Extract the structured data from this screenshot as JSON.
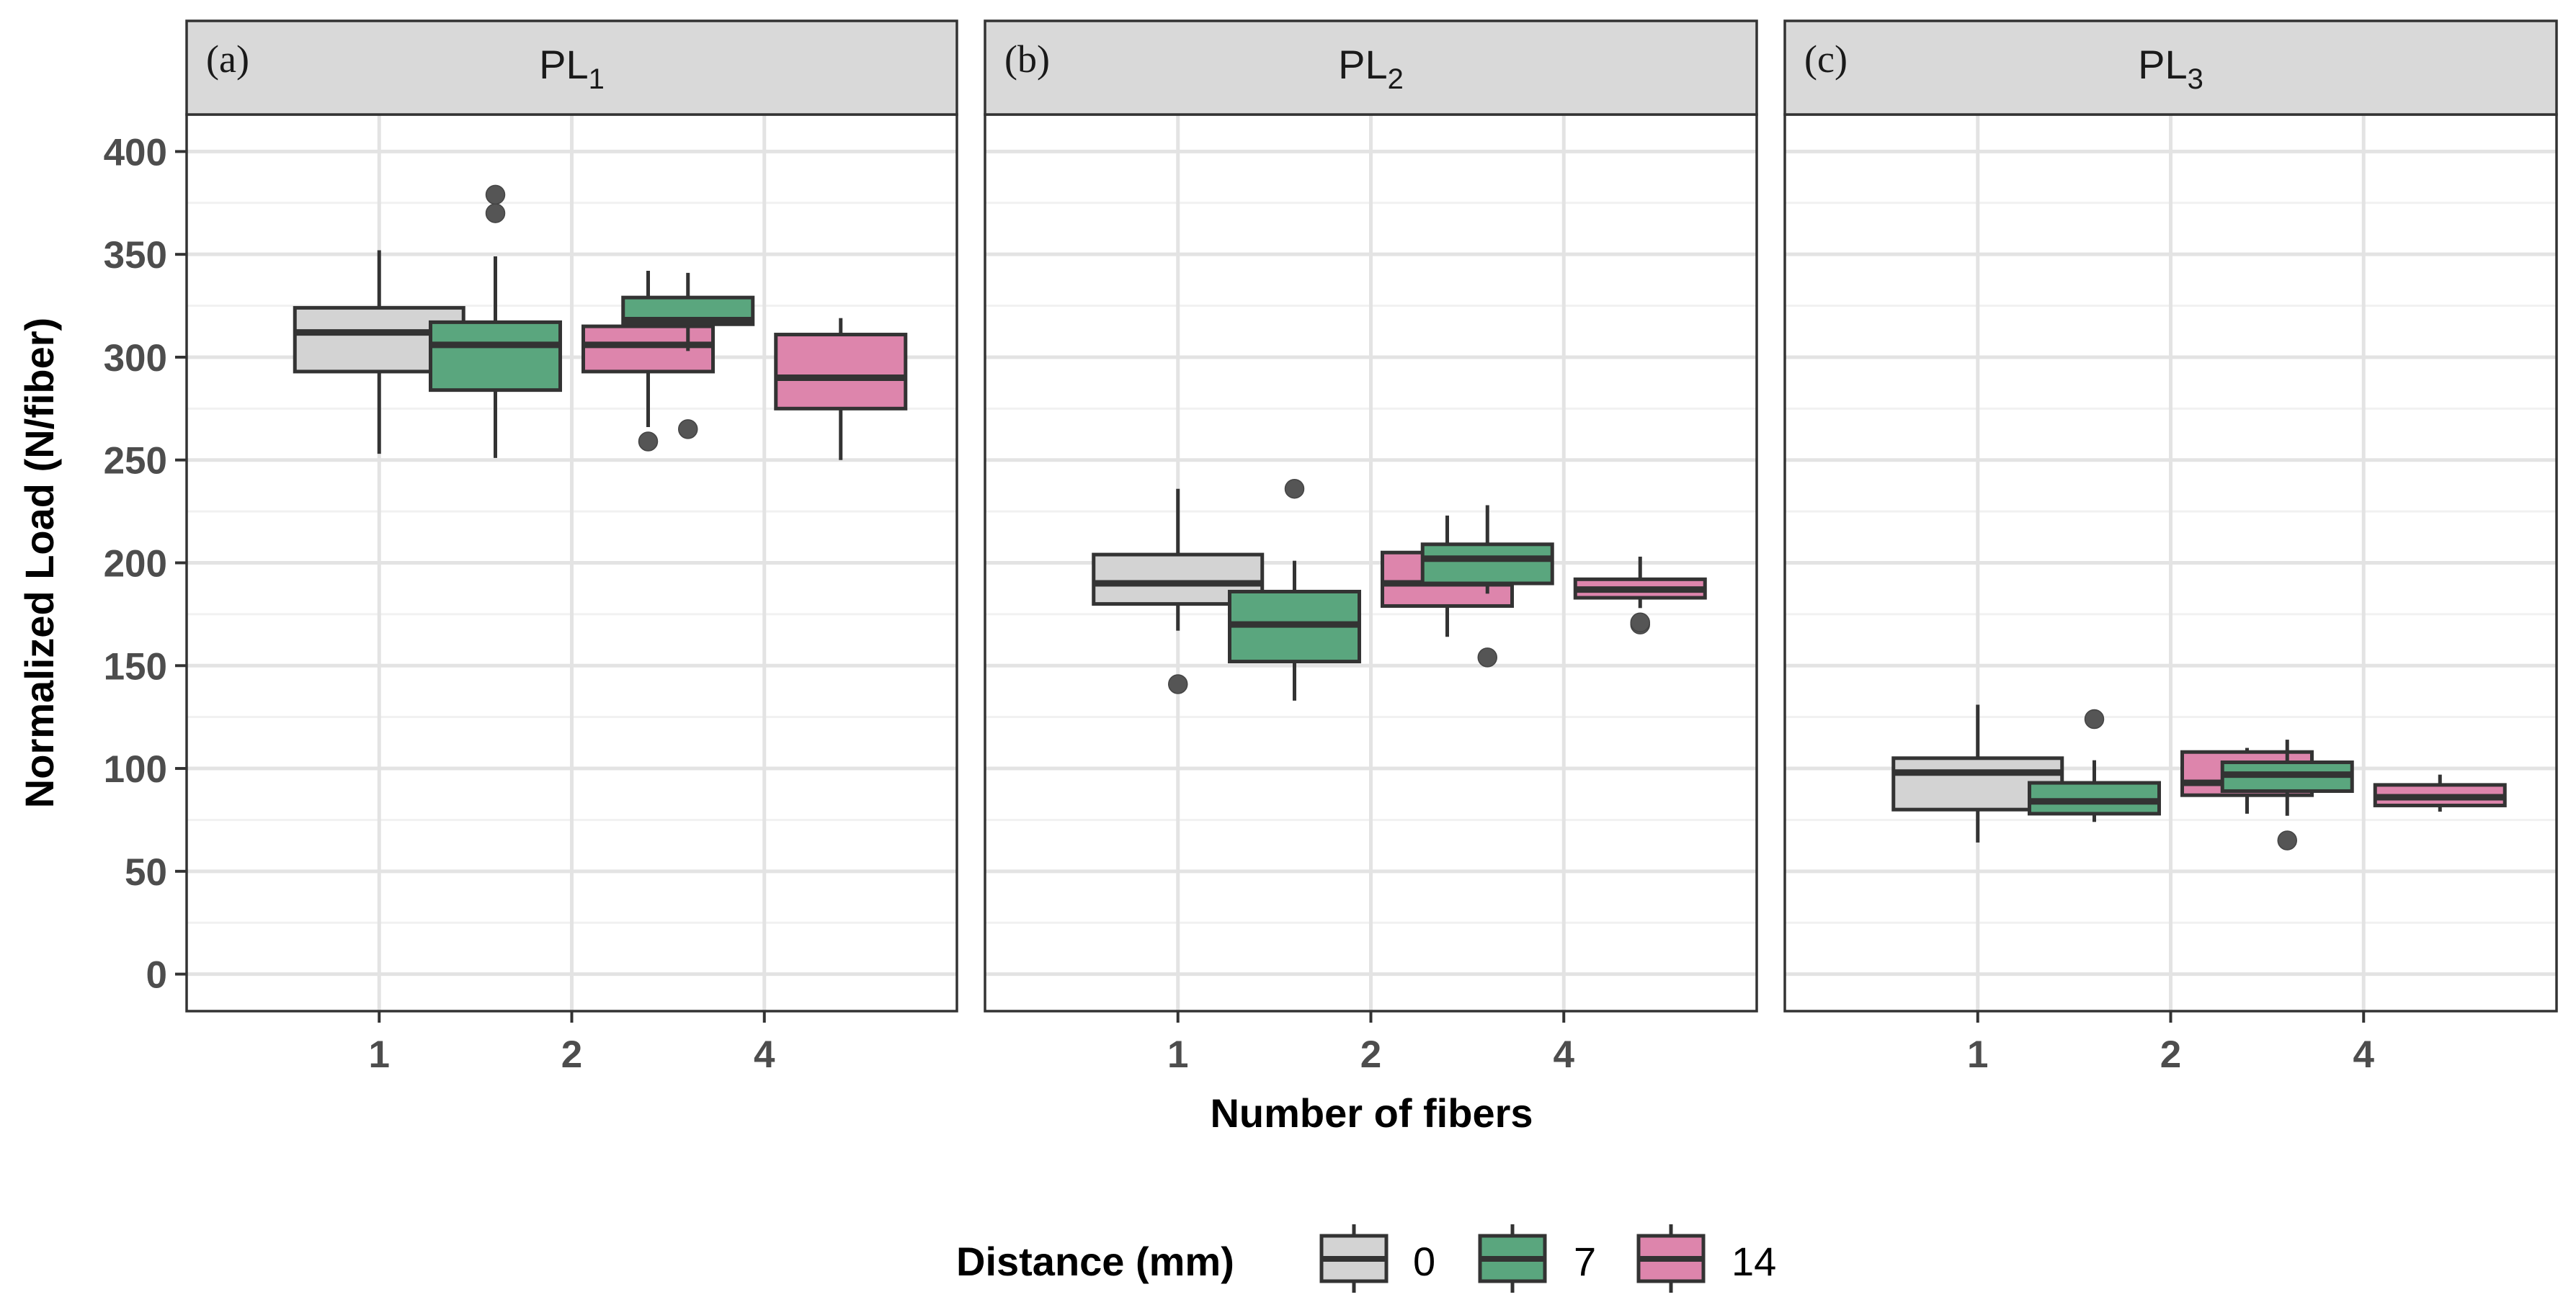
{
  "chart_data": {
    "type": "boxplot",
    "facets": [
      {
        "tag": "(a)",
        "label_base": "PL",
        "label_sub": "1",
        "boxes": [
          {
            "x": "1",
            "distance": "0",
            "min": 253,
            "q1": 293,
            "median": 312,
            "q3": 324,
            "max": 352,
            "outliers": []
          },
          {
            "x": "2",
            "distance": "7",
            "min": 251,
            "q1": 284,
            "median": 306,
            "q3": 317,
            "max": 349,
            "outliers": [
              370,
              379
            ]
          },
          {
            "x": "2",
            "distance": "14",
            "min": 266,
            "q1": 293,
            "median": 306,
            "q3": 315,
            "max": 342,
            "outliers": [
              259
            ]
          },
          {
            "x": "4",
            "distance": "7",
            "min": 303,
            "q1": 316,
            "median": 318,
            "q3": 329,
            "max": 341,
            "outliers": [
              265
            ]
          },
          {
            "x": "4",
            "distance": "14",
            "min": 250,
            "q1": 275,
            "median": 290,
            "q3": 311,
            "max": 319,
            "outliers": []
          }
        ]
      },
      {
        "tag": "(b)",
        "label_base": "PL",
        "label_sub": "2",
        "boxes": [
          {
            "x": "1",
            "distance": "0",
            "min": 167,
            "q1": 180,
            "median": 190,
            "q3": 204,
            "max": 236,
            "outliers": [
              141
            ]
          },
          {
            "x": "2",
            "distance": "7",
            "min": 133,
            "q1": 152,
            "median": 170,
            "q3": 186,
            "max": 201,
            "outliers": [
              236
            ]
          },
          {
            "x": "2",
            "distance": "14",
            "min": 164,
            "q1": 179,
            "median": 190,
            "q3": 205,
            "max": 223,
            "outliers": []
          },
          {
            "x": "4",
            "distance": "7",
            "min": 185,
            "q1": 190,
            "median": 202,
            "q3": 209,
            "max": 228,
            "outliers": [
              154
            ]
          },
          {
            "x": "4",
            "distance": "14",
            "min": 178,
            "q1": 183,
            "median": 187,
            "q3": 192,
            "max": 203,
            "outliers": [
              170,
              171
            ]
          }
        ]
      },
      {
        "tag": "(c)",
        "label_base": "PL",
        "label_sub": "3",
        "boxes": [
          {
            "x": "1",
            "distance": "0",
            "min": 64,
            "q1": 80,
            "median": 98,
            "q3": 105,
            "max": 131,
            "outliers": []
          },
          {
            "x": "2",
            "distance": "7",
            "min": 74,
            "q1": 78,
            "median": 84,
            "q3": 93,
            "max": 104,
            "outliers": [
              124
            ]
          },
          {
            "x": "2",
            "distance": "14",
            "min": 78,
            "q1": 87,
            "median": 93,
            "q3": 108,
            "max": 110,
            "outliers": []
          },
          {
            "x": "4",
            "distance": "7",
            "min": 77,
            "q1": 89,
            "median": 97,
            "q3": 103,
            "max": 114,
            "outliers": [
              65
            ]
          },
          {
            "x": "4",
            "distance": "14",
            "min": 79,
            "q1": 82,
            "median": 86,
            "q3": 92,
            "max": 97,
            "outliers": []
          }
        ]
      }
    ],
    "categories": [
      "1",
      "2",
      "4"
    ],
    "xlabel": "Number of fibers",
    "ylabel": "Normalized Load (N/fiber)",
    "ylim": [
      -18,
      418
    ],
    "yticks": [
      0,
      50,
      100,
      150,
      200,
      250,
      300,
      350,
      400
    ],
    "grid": true,
    "legend": {
      "title": "Distance (mm)",
      "position": "bottom",
      "entries": [
        {
          "label": "0",
          "color": "#d3d3d3"
        },
        {
          "label": "7",
          "color": "#5aa67e"
        },
        {
          "label": "14",
          "color": "#dd85ac"
        }
      ]
    }
  }
}
